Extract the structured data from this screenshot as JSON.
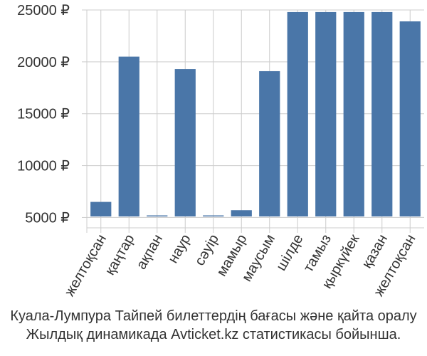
{
  "chart_data": {
    "type": "bar",
    "categories": [
      "желтоқсан",
      "қаңтар",
      "ақпан",
      "наур",
      "сәуір",
      "мамыр",
      "маусым",
      "шілде",
      "тамыз",
      "қыркүйек",
      "қазан",
      "желтоқсан"
    ],
    "values": [
      6500,
      20500,
      5200,
      19300,
      5200,
      5700,
      19100,
      24800,
      24800,
      24800,
      24800,
      23900
    ],
    "ylim": [
      4000,
      25000
    ],
    "yticks": [
      5000,
      10000,
      15000,
      20000,
      25000
    ],
    "ytick_labels": [
      "5000 ₽",
      "10000 ₽",
      "15000 ₽",
      "20000 ₽",
      "25000 ₽"
    ],
    "bar_color": "#4a76a8",
    "grid_color": "#cccccc",
    "grid": true
  },
  "caption": {
    "line1": "Куала-Лумпура Тайпей билеттердің бағасы және қайта оралу",
    "line2": "Жылдық динамикада Avticket.kz статистикасы бойынша."
  }
}
